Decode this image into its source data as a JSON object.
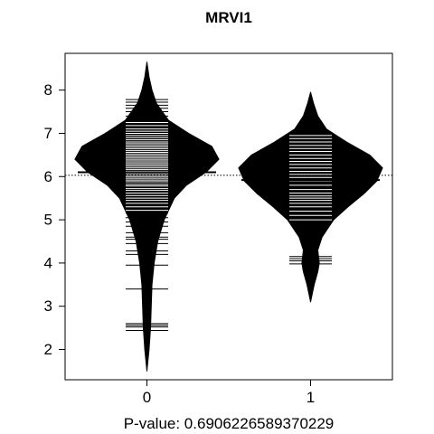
{
  "chart_data": {
    "type": "beanplot",
    "title": "MRVI1",
    "xlabel": "P-value: 0.6906226589370229",
    "ylabel": "",
    "ylim": [
      1.3,
      8.85
    ],
    "y_ticks": [
      2,
      3,
      4,
      5,
      6,
      7,
      8
    ],
    "categories": [
      "0",
      "1"
    ],
    "overall_mean": 6.03,
    "grid": false,
    "legend": "none",
    "colors": {
      "bean": "#000000",
      "bars": "#ffffff",
      "axis": "#000000",
      "background": "#ffffff"
    },
    "series": [
      {
        "category": "0",
        "mean": 6.1,
        "density": [
          [
            1.5,
            0.0
          ],
          [
            2.0,
            0.03
          ],
          [
            2.5,
            0.05
          ],
          [
            3.0,
            0.06
          ],
          [
            3.5,
            0.07
          ],
          [
            4.0,
            0.1
          ],
          [
            4.5,
            0.15
          ],
          [
            5.0,
            0.24
          ],
          [
            5.5,
            0.38
          ],
          [
            5.8,
            0.55
          ],
          [
            6.1,
            0.82
          ],
          [
            6.4,
            1.0
          ],
          [
            6.7,
            0.9
          ],
          [
            7.0,
            0.58
          ],
          [
            7.3,
            0.3
          ],
          [
            7.7,
            0.13
          ],
          [
            8.0,
            0.07
          ],
          [
            8.3,
            0.03
          ],
          [
            8.65,
            0.0
          ]
        ],
        "points": [
          2.44,
          2.52,
          2.56,
          2.6,
          3.4,
          3.95,
          4.2,
          4.28,
          4.45,
          4.55,
          4.6,
          4.7,
          4.85,
          4.95,
          5.05,
          5.15,
          5.22,
          5.3,
          5.38,
          5.45,
          5.5,
          5.56,
          5.62,
          5.68,
          5.72,
          5.78,
          5.82,
          5.88,
          5.92,
          5.96,
          6.0,
          6.04,
          6.08,
          6.12,
          6.16,
          6.2,
          6.24,
          6.28,
          6.32,
          6.36,
          6.4,
          6.44,
          6.48,
          6.52,
          6.56,
          6.6,
          6.64,
          6.68,
          6.72,
          6.76,
          6.8,
          6.85,
          6.9,
          6.95,
          7.0,
          7.05,
          7.1,
          7.18,
          7.25,
          7.32,
          7.4,
          7.5,
          7.58,
          7.65,
          7.72,
          7.78
        ]
      },
      {
        "category": "1",
        "mean": 5.92,
        "density": [
          [
            3.1,
            0.0
          ],
          [
            3.5,
            0.05
          ],
          [
            3.8,
            0.1
          ],
          [
            4.0,
            0.12
          ],
          [
            4.3,
            0.1
          ],
          [
            4.6,
            0.16
          ],
          [
            5.0,
            0.32
          ],
          [
            5.3,
            0.52
          ],
          [
            5.6,
            0.74
          ],
          [
            5.9,
            0.92
          ],
          [
            6.2,
            1.0
          ],
          [
            6.5,
            0.82
          ],
          [
            6.8,
            0.5
          ],
          [
            7.1,
            0.22
          ],
          [
            7.4,
            0.1
          ],
          [
            7.7,
            0.04
          ],
          [
            7.95,
            0.0
          ]
        ],
        "points": [
          3.98,
          4.05,
          4.1,
          4.15,
          5.0,
          5.1,
          5.2,
          5.3,
          5.38,
          5.45,
          5.5,
          5.55,
          5.62,
          5.7,
          5.8,
          5.9,
          5.98,
          6.05,
          6.12,
          6.2,
          6.28,
          6.35,
          6.42,
          6.5,
          6.58,
          6.65,
          6.72,
          6.8,
          6.88,
          6.95,
          7.02
        ]
      }
    ]
  }
}
